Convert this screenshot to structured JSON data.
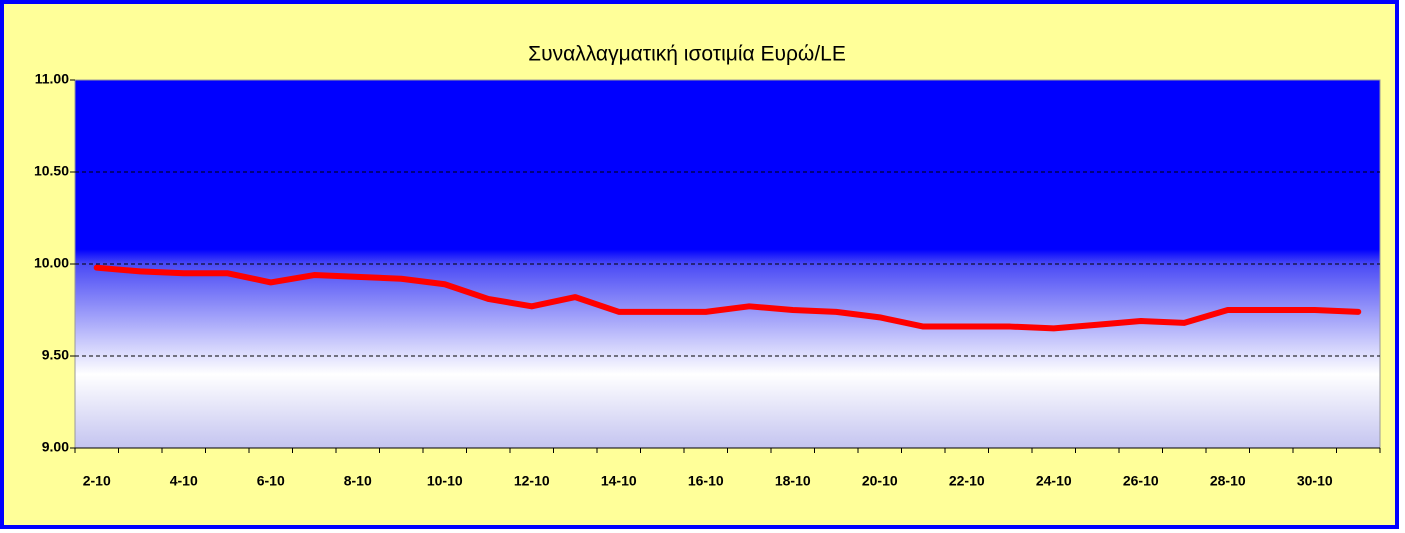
{
  "chart_data": {
    "type": "line",
    "title": "Συναλλαγματική ισοτιμία Ευρώ/LE",
    "categories": [
      "2-10",
      null,
      "4-10",
      null,
      "6-10",
      null,
      "8-10",
      null,
      "10-10",
      null,
      "12-10",
      null,
      "14-10",
      null,
      "16-10",
      null,
      "18-10",
      null,
      "20-10",
      null,
      "22-10",
      null,
      "24-10",
      null,
      "26-10",
      null,
      "28-10",
      null,
      "30-10",
      null
    ],
    "series": [
      {
        "name": "Ευρώ/LE",
        "color": "#ff0000",
        "values": [
          9.98,
          9.96,
          9.95,
          9.95,
          9.9,
          9.94,
          9.93,
          9.92,
          9.89,
          9.81,
          9.77,
          9.82,
          9.74,
          9.74,
          9.74,
          9.77,
          9.75,
          9.74,
          9.71,
          9.66,
          9.66,
          9.66,
          9.65,
          9.67,
          9.69,
          9.68,
          9.75,
          9.75,
          9.75,
          9.74
        ]
      }
    ],
    "ylim": [
      9.0,
      11.0
    ],
    "yticks": [
      {
        "value": 9.0,
        "label": "9.00"
      },
      {
        "value": 9.5,
        "label": "9.50"
      },
      {
        "value": 10.0,
        "label": "10.00"
      },
      {
        "value": 10.5,
        "label": "10.50"
      },
      {
        "value": 11.0,
        "label": "11.00"
      }
    ],
    "grid": true
  }
}
